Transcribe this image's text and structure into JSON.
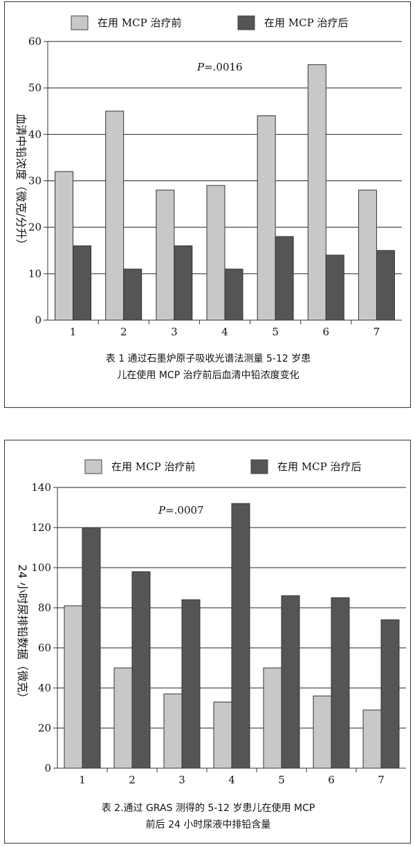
{
  "colors": {
    "before": "#c8c8c8",
    "after": "#555555",
    "grid": "#222222",
    "frame": "#333333"
  },
  "chart_data": [
    {
      "type": "bar",
      "categories": [
        "1",
        "2",
        "3",
        "4",
        "5",
        "6",
        "7"
      ],
      "series": [
        {
          "name": "在用 MCP 治疗前",
          "values": [
            32,
            45,
            28,
            29,
            44,
            55,
            28
          ]
        },
        {
          "name": "在用 MCP 治疗后",
          "values": [
            16,
            11,
            16,
            11,
            18,
            14,
            15
          ]
        }
      ],
      "ylim": [
        0,
        60
      ],
      "yticks": [
        "0",
        "10",
        "20",
        "30",
        "40",
        "50",
        "60"
      ],
      "ylabel": "血清中铅浓度（微克/分升）",
      "annotation": "P=.0016",
      "annotation_italic": "P",
      "annotation_rest": "=.0016",
      "legend_position": "top",
      "grid": true,
      "caption_lines": [
        "表 1 通过石墨炉原子吸收光谱法测量 5-12 岁患",
        "儿在使用 MCP 治疗前后血清中铅浓度变化"
      ]
    },
    {
      "type": "bar",
      "categories": [
        "1",
        "2",
        "3",
        "4",
        "5",
        "6",
        "7"
      ],
      "series": [
        {
          "name": "在用 MCP 治疗前",
          "values": [
            81,
            50,
            37,
            33,
            50,
            36,
            29
          ]
        },
        {
          "name": "在用 MCP 治疗后",
          "values": [
            120,
            98,
            84,
            132,
            86,
            85,
            74
          ]
        }
      ],
      "ylim": [
        0,
        140
      ],
      "yticks": [
        "0",
        "20",
        "40",
        "60",
        "80",
        "100",
        "120",
        "140"
      ],
      "ylabel": "24 小时尿排铅数据（微克）",
      "annotation": "P=.0007",
      "annotation_italic": "P",
      "annotation_rest": "=.0007",
      "legend_position": "top",
      "grid": true,
      "caption_lines": [
        "表 2.通过 GRAS 测得的 5-12 岁患儿在使用 MCP",
        "前后 24 小时尿液中排铅含量"
      ]
    }
  ]
}
